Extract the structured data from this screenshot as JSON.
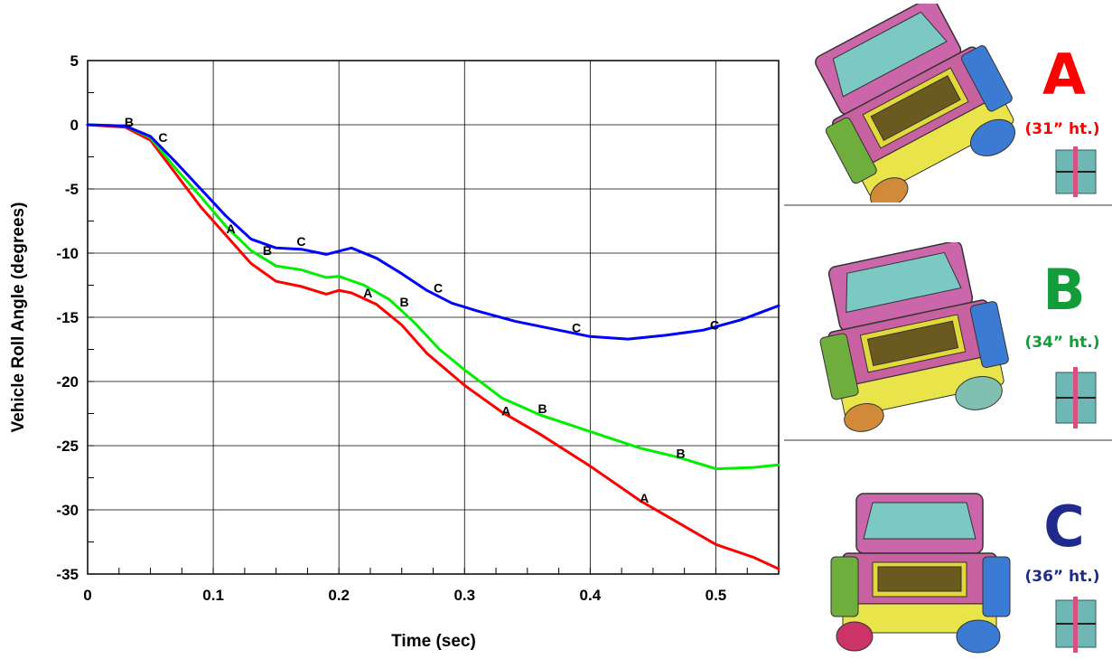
{
  "chart_data": {
    "type": "line",
    "xlabel": "Time (sec)",
    "ylabel": "Vehicle Roll Angle (degrees)",
    "xlim": [
      0,
      0.55
    ],
    "ylim": [
      -35,
      5
    ],
    "x_ticks": [
      "0",
      "0.1",
      "0.2",
      "0.3",
      "0.4",
      "0.5"
    ],
    "y_ticks": [
      "5",
      "0",
      "-5",
      "-10",
      "-15",
      "-20",
      "-25",
      "-30",
      "-35"
    ],
    "grid": true,
    "series": [
      {
        "name": "A",
        "color": "#ff0000",
        "x": [
          0,
          0.03,
          0.05,
          0.07,
          0.09,
          0.11,
          0.13,
          0.15,
          0.17,
          0.19,
          0.2,
          0.21,
          0.23,
          0.25,
          0.27,
          0.3,
          0.33,
          0.36,
          0.4,
          0.44,
          0.47,
          0.5,
          0.53,
          0.55
        ],
        "y": [
          0,
          -0.2,
          -1.2,
          -3.8,
          -6.4,
          -8.6,
          -10.8,
          -12.2,
          -12.6,
          -13.2,
          -12.9,
          -13.1,
          -14.0,
          -15.6,
          -17.8,
          -20.3,
          -22.4,
          -24.1,
          -26.6,
          -29.3,
          -31.0,
          -32.7,
          -33.7,
          -34.6
        ]
      },
      {
        "name": "B",
        "color": "#00ee00",
        "x": [
          0,
          0.03,
          0.05,
          0.07,
          0.09,
          0.11,
          0.13,
          0.15,
          0.17,
          0.19,
          0.2,
          0.22,
          0.24,
          0.26,
          0.28,
          0.3,
          0.33,
          0.36,
          0.4,
          0.44,
          0.47,
          0.5,
          0.53,
          0.55
        ],
        "y": [
          0,
          -0.1,
          -1.0,
          -3.4,
          -5.6,
          -7.9,
          -9.8,
          -11.0,
          -11.3,
          -11.9,
          -11.8,
          -12.5,
          -13.6,
          -15.4,
          -17.5,
          -19.1,
          -21.3,
          -22.6,
          -23.9,
          -25.2,
          -25.9,
          -26.8,
          -26.7,
          -26.5
        ]
      },
      {
        "name": "C",
        "color": "#0000ff",
        "x": [
          0,
          0.03,
          0.05,
          0.07,
          0.09,
          0.11,
          0.13,
          0.15,
          0.17,
          0.19,
          0.21,
          0.23,
          0.25,
          0.27,
          0.29,
          0.31,
          0.34,
          0.37,
          0.4,
          0.43,
          0.46,
          0.49,
          0.52,
          0.55
        ],
        "y": [
          0,
          -0.1,
          -0.9,
          -2.9,
          -5.0,
          -7.1,
          -8.9,
          -9.6,
          -9.7,
          -10.1,
          -9.6,
          -10.4,
          -11.6,
          -12.9,
          -13.9,
          -14.5,
          -15.3,
          -15.9,
          -16.5,
          -16.7,
          -16.4,
          -16.0,
          -15.2,
          -14.1
        ]
      }
    ],
    "markers": [
      {
        "label": "B",
        "x": 0.033,
        "y": 0.2
      },
      {
        "label": "C",
        "x": 0.06,
        "y": -1.0
      },
      {
        "label": "A",
        "x": 0.114,
        "y": -8.1
      },
      {
        "label": "B",
        "x": 0.143,
        "y": -9.8
      },
      {
        "label": "C",
        "x": 0.17,
        "y": -9.1
      },
      {
        "label": "A",
        "x": 0.223,
        "y": -13.1
      },
      {
        "label": "B",
        "x": 0.252,
        "y": -13.8
      },
      {
        "label": "C",
        "x": 0.279,
        "y": -12.7
      },
      {
        "label": "A",
        "x": 0.333,
        "y": -22.3
      },
      {
        "label": "B",
        "x": 0.362,
        "y": -22.1
      },
      {
        "label": "C",
        "x": 0.389,
        "y": -15.8
      },
      {
        "label": "A",
        "x": 0.443,
        "y": -29.1
      },
      {
        "label": "B",
        "x": 0.472,
        "y": -25.6
      },
      {
        "label": "C",
        "x": 0.499,
        "y": -15.6
      }
    ]
  },
  "cases": [
    {
      "letter": "A",
      "height_label": "(31” ht.)",
      "color": "#ff0000"
    },
    {
      "letter": "B",
      "height_label": "(34” ht.)",
      "color": "#129c3a"
    },
    {
      "letter": "C",
      "height_label": "(36” ht.)",
      "color": "#1f2a8c"
    }
  ]
}
